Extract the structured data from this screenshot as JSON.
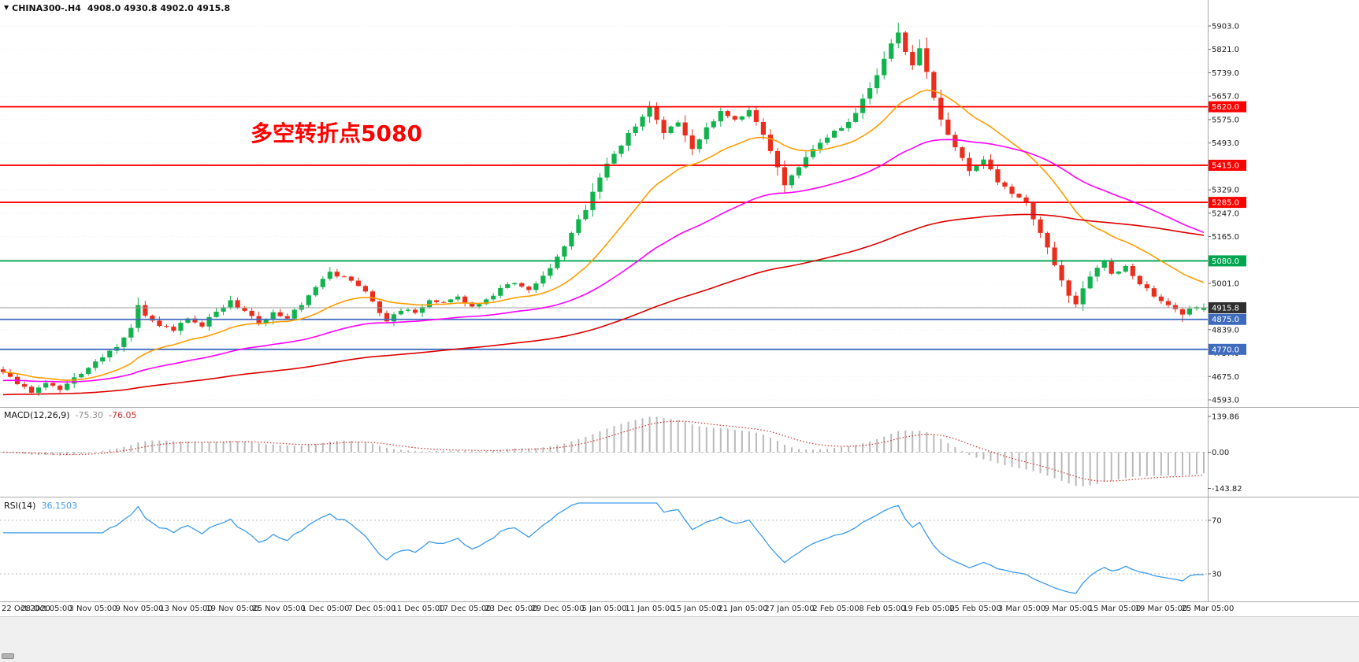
{
  "header": {
    "dropdown_icon": "▼",
    "symbol": "CHINA300-.H4",
    "ohlc": "4908.0 4930.8 4902.0 4915.8"
  },
  "annotation": {
    "text": "多空转折点5080",
    "color": "#ff0000"
  },
  "chart_data": {
    "type": "candlestick",
    "symbol": "CHINA300-",
    "timeframe": "H4",
    "title": "CHINA300-.H4",
    "current_ohlc": {
      "open": 4908.0,
      "high": 4930.8,
      "low": 4902.0,
      "close": 4915.8
    },
    "price_axis": {
      "ylim": [
        4593.0,
        5903.0
      ],
      "labels": [
        "5903.0",
        "5821.0",
        "5739.0",
        "5657.0",
        "5575.0",
        "5493.0",
        "5411.0",
        "5329.0",
        "5247.0",
        "5165.0",
        "5083.0",
        "5001.0",
        "4919.0",
        "4839.0",
        "4757.0",
        "4675.0",
        "4593.0"
      ]
    },
    "hlines": [
      {
        "price": 5620.0,
        "color": "#fe0000",
        "label": "5620.0"
      },
      {
        "price": 5415.0,
        "color": "#fe0000",
        "label": "5415.0"
      },
      {
        "price": 5285.0,
        "color": "#fe0000",
        "label": "5285.0"
      },
      {
        "price": 5080.0,
        "color": "#00a550",
        "label": "5080.0"
      },
      {
        "price": 4875.0,
        "color": "#3f6bbf",
        "label": "4875.0"
      },
      {
        "price": 4770.0,
        "color": "#3f6bbf",
        "label": "4770.0"
      }
    ],
    "current_price_line": {
      "price": 4915.8,
      "line_color": "#a0a0a0",
      "badge_color": "#2f2f2f",
      "label": "4915.8"
    },
    "candles": {
      "count": 170,
      "up_color": "#12b24e",
      "down_color": "#ea2e1d",
      "last": [
        4908.0,
        4930.8,
        4902.0,
        4915.8
      ],
      "waypoints": [
        [
          0,
          4690
        ],
        [
          2,
          4648
        ],
        [
          4,
          4618
        ],
        [
          6,
          4652
        ],
        [
          8,
          4628
        ],
        [
          10,
          4672
        ],
        [
          12,
          4705
        ],
        [
          14,
          4742
        ],
        [
          16,
          4778
        ],
        [
          18,
          4845
        ],
        [
          19,
          4925
        ],
        [
          20,
          4888
        ],
        [
          22,
          4852
        ],
        [
          24,
          4835
        ],
        [
          26,
          4878
        ],
        [
          28,
          4850
        ],
        [
          30,
          4902
        ],
        [
          32,
          4942
        ],
        [
          34,
          4905
        ],
        [
          36,
          4862
        ],
        [
          38,
          4900
        ],
        [
          40,
          4878
        ],
        [
          42,
          4925
        ],
        [
          44,
          4988
        ],
        [
          46,
          5042
        ],
        [
          48,
          5025
        ],
        [
          50,
          4992
        ],
        [
          52,
          4938
        ],
        [
          54,
          4868
        ],
        [
          56,
          4905
        ],
        [
          58,
          4898
        ],
        [
          60,
          4942
        ],
        [
          62,
          4935
        ],
        [
          64,
          4955
        ],
        [
          66,
          4920
        ],
        [
          68,
          4945
        ],
        [
          70,
          4985
        ],
        [
          72,
          5002
        ],
        [
          74,
          4978
        ],
        [
          76,
          5028
        ],
        [
          78,
          5095
        ],
        [
          80,
          5178
        ],
        [
          82,
          5258
        ],
        [
          84,
          5372
        ],
        [
          86,
          5455
        ],
        [
          88,
          5528
        ],
        [
          90,
          5585
        ],
        [
          91,
          5622
        ],
        [
          93,
          5528
        ],
        [
          95,
          5565
        ],
        [
          97,
          5472
        ],
        [
          99,
          5548
        ],
        [
          101,
          5605
        ],
        [
          103,
          5575
        ],
        [
          105,
          5608
        ],
        [
          107,
          5522
        ],
        [
          109,
          5408
        ],
        [
          110,
          5345
        ],
        [
          112,
          5408
        ],
        [
          114,
          5472
        ],
        [
          116,
          5512
        ],
        [
          118,
          5545
        ],
        [
          120,
          5598
        ],
        [
          122,
          5685
        ],
        [
          124,
          5788
        ],
        [
          126,
          5880
        ],
        [
          127,
          5812
        ],
        [
          128,
          5765
        ],
        [
          129,
          5825
        ],
        [
          130,
          5742
        ],
        [
          132,
          5575
        ],
        [
          134,
          5478
        ],
        [
          136,
          5395
        ],
        [
          138,
          5435
        ],
        [
          140,
          5355
        ],
        [
          142,
          5315
        ],
        [
          144,
          5285
        ],
        [
          146,
          5178
        ],
        [
          148,
          5065
        ],
        [
          150,
          4958
        ],
        [
          151,
          4928
        ],
        [
          153,
          5025
        ],
        [
          155,
          5078
        ],
        [
          156,
          5035
        ],
        [
          158,
          5062
        ],
        [
          160,
          4998
        ],
        [
          162,
          4955
        ],
        [
          164,
          4925
        ],
        [
          166,
          4892
        ],
        [
          168,
          4918
        ],
        [
          169,
          4915.8
        ]
      ],
      "wick_overrides": [
        [
          19,
          4952,
          null
        ],
        [
          91,
          5640,
          null
        ],
        [
          126,
          5915,
          null
        ],
        [
          151,
          null,
          4916
        ],
        [
          166,
          null,
          4866
        ]
      ]
    },
    "moving_averages": [
      {
        "period": 20,
        "color": "#ff9d00"
      },
      {
        "period": 55,
        "color": "#ff00fe"
      },
      {
        "period": 140,
        "color": "#dd0000"
      }
    ],
    "x_axis_labels": [
      "22 Oct 2020",
      "28 Oct 05:00",
      "3 Nov 05:00",
      "9 Nov 05:00",
      "13 Nov 05:00",
      "19 Nov 05:00",
      "25 Nov 05:00",
      "1 Dec 05:00",
      "7 Dec 05:00",
      "11 Dec 05:00",
      "17 Dec 05:00",
      "23 Dec 05:00",
      "29 Dec 05:00",
      "5 Jan 05:00",
      "11 Jan 05:00",
      "15 Jan 05:00",
      "21 Jan 05:00",
      "27 Jan 05:00",
      "2 Feb 05:00",
      "8 Feb 05:00",
      "19 Feb 05:00",
      "25 Feb 05:00",
      "3 Mar 05:00",
      "9 Mar 05:00",
      "15 Mar 05:00",
      "19 Mar 05:00",
      "25 Mar 05:00"
    ],
    "macd": {
      "label": "MACD(12,26,9)",
      "value": "-75.30",
      "signal_value": "-76.05",
      "fast": 12,
      "slow": 26,
      "signal": 9,
      "axis_labels": [
        "139.86",
        "0.00",
        "-143.82"
      ],
      "hist_color": "#b9b9b9",
      "signal_color": "#d02f2f"
    },
    "rsi": {
      "label": "RSI(14)",
      "value": "36.1503",
      "period": 14,
      "levels": [
        70,
        30
      ],
      "axis_labels": [
        "70",
        "30"
      ],
      "line_color": "#3d9be9"
    }
  }
}
